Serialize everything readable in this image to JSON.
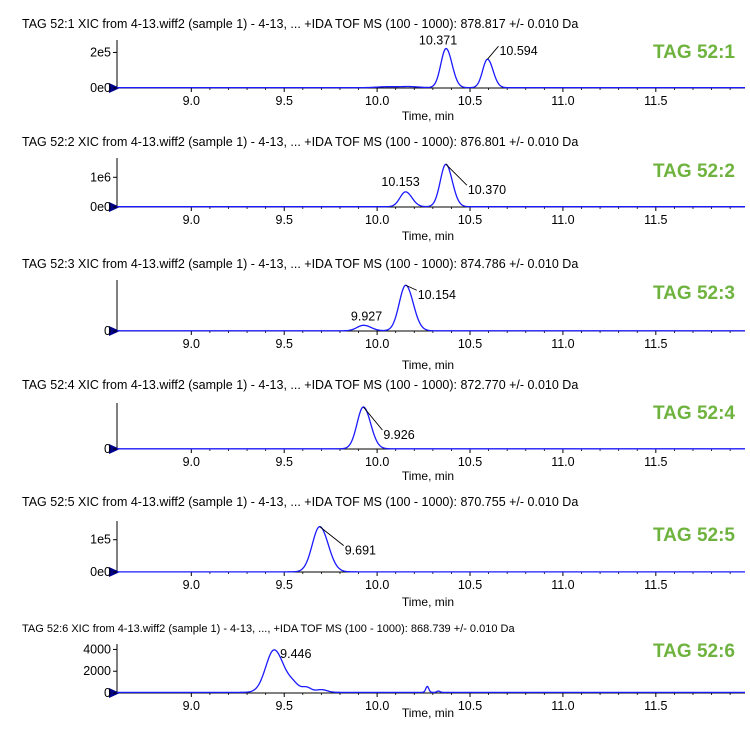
{
  "chart_data": [
    {
      "type": "line",
      "header": "TAG 52:1 XIC from 4-13.wiff2 (sample 1) - 4-13, ... +IDA TOF MS (100 - 1000): 878.817 +/- 0.010 Da",
      "tag_label": "TAG 52:1",
      "xlabel": "Time, min",
      "xlim": [
        8.6,
        11.98
      ],
      "xticks": [
        "9.0",
        "9.5",
        "10.0",
        "10.5",
        "11.0",
        "11.5"
      ],
      "yticks": [
        {
          "value": 0,
          "label": "0e0"
        },
        {
          "value": 200000,
          "label": "2e5"
        }
      ],
      "ylim": [
        0,
        270000
      ],
      "baseline": 2000,
      "noise": [
        {
          "x": 10.05,
          "amp": 5000,
          "w": 0.05
        },
        {
          "x": 10.17,
          "amp": 6000,
          "w": 0.05
        }
      ],
      "peaks": [
        {
          "x": 10.371,
          "height": 220000,
          "width": 0.028,
          "label": "10.371"
        },
        {
          "x": 10.594,
          "height": 160000,
          "width": 0.026,
          "label": "10.594"
        }
      ],
      "series": [
        {
          "color": "#1a1aff"
        }
      ]
    },
    {
      "type": "line",
      "header": "TAG 52:2 XIC from 4-13.wiff2 (sample 1) - 4-13, ... +IDA TOF MS (100 - 1000): 876.801 +/- 0.010 Da",
      "tag_label": "TAG 52:2",
      "xlabel": "Time, min",
      "xlim": [
        8.6,
        11.98
      ],
      "xticks": [
        "9.0",
        "9.5",
        "10.0",
        "10.5",
        "11.0",
        "11.5"
      ],
      "yticks": [
        {
          "value": 0,
          "label": "0e0"
        },
        {
          "value": 1000000,
          "label": "1e6"
        }
      ],
      "ylim": [
        0,
        1650000
      ],
      "baseline": 10000,
      "noise": [],
      "peaks": [
        {
          "x": 10.153,
          "height": 500000,
          "width": 0.03,
          "label": "10.153"
        },
        {
          "x": 10.37,
          "height": 1430000,
          "width": 0.03,
          "label": "10.370"
        }
      ],
      "series": [
        {
          "color": "#1a1aff"
        }
      ]
    },
    {
      "type": "line",
      "header": "TAG 52:3 XIC from 4-13.wiff2 (sample 1) - 4-13, ... +IDA TOF MS (100 - 1000): 874.786 +/- 0.010 Da",
      "tag_label": "TAG 52:3",
      "xlabel": "Time, min",
      "xlim": [
        8.6,
        11.98
      ],
      "xticks": [
        "9.0",
        "9.5",
        "10.0",
        "10.5",
        "11.0",
        "11.5"
      ],
      "yticks": [
        {
          "value": 0,
          "label": "0"
        }
      ],
      "ylim": [
        0,
        1.12
      ],
      "baseline": 0.005,
      "noise": [],
      "peaks": [
        {
          "x": 9.927,
          "height": 0.12,
          "width": 0.035,
          "label": "9.927"
        },
        {
          "x": 10.154,
          "height": 1.0,
          "width": 0.035,
          "label": "10.154"
        }
      ],
      "series": [
        {
          "color": "#1a1aff"
        }
      ]
    },
    {
      "type": "line",
      "header": "TAG 52:4 XIC from 4-13.wiff2 (sample 1) - 4-13, ... +IDA TOF MS (100 - 1000): 872.770 +/- 0.010 Da",
      "tag_label": "TAG 52:4",
      "xlabel": "Time, min",
      "xlim": [
        8.6,
        11.98
      ],
      "xticks": [
        "9.0",
        "9.5",
        "10.0",
        "10.5",
        "11.0",
        "11.5"
      ],
      "yticks": [
        {
          "value": 0,
          "label": "0"
        }
      ],
      "ylim": [
        0,
        1.1
      ],
      "baseline": 0.005,
      "noise": [],
      "peaks": [
        {
          "x": 9.926,
          "height": 1.0,
          "width": 0.034,
          "label": "9.926"
        }
      ],
      "series": [
        {
          "color": "#1a1aff"
        }
      ]
    },
    {
      "type": "line",
      "header": "TAG 52:5 XIC from 4-13.wiff2 (sample 1) - 4-13, ... +IDA TOF MS (100 - 1000): 870.755 +/- 0.010 Da",
      "tag_label": "TAG 52:5",
      "xlabel": "Time, min",
      "xlim": [
        8.6,
        11.98
      ],
      "xticks": [
        "9.0",
        "9.5",
        "10.0",
        "10.5",
        "11.0",
        "11.5"
      ],
      "yticks": [
        {
          "value": 0,
          "label": "0e0"
        },
        {
          "value": 100000,
          "label": "1e5"
        }
      ],
      "ylim": [
        0,
        158000
      ],
      "baseline": 500,
      "noise": [],
      "peaks": [
        {
          "x": 9.691,
          "height": 140000,
          "width": 0.04,
          "label": "9.691"
        }
      ],
      "series": [
        {
          "color": "#1a1aff"
        }
      ]
    },
    {
      "type": "line",
      "header": "TAG 52:6 XIC from 4-13.wiff2 (sample 1) - 4-13, ..., +IDA TOF MS (100 - 1000): 868.739 +/- 0.010 Da",
      "tag_label": "TAG 52:6",
      "xlabel": "Time, min",
      "xlim": [
        8.6,
        11.98
      ],
      "xticks": [
        "9.0",
        "9.5",
        "10.0",
        "10.5",
        "11.0",
        "11.5"
      ],
      "yticks": [
        {
          "value": 0,
          "label": "0"
        },
        {
          "value": 2000,
          "label": "2000"
        },
        {
          "value": 4000,
          "label": "4000"
        }
      ],
      "ylim": [
        0,
        4500
      ],
      "baseline": 60,
      "noise": [
        {
          "x": 9.55,
          "amp": 600,
          "w": 0.03
        },
        {
          "x": 9.62,
          "amp": 450,
          "w": 0.025
        },
        {
          "x": 9.7,
          "amp": 250,
          "w": 0.03
        },
        {
          "x": 10.27,
          "amp": 550,
          "w": 0.008
        },
        {
          "x": 10.33,
          "amp": 120,
          "w": 0.008
        }
      ],
      "peaks": [
        {
          "x": 9.446,
          "height": 3900,
          "width": 0.045,
          "label": "9.446"
        }
      ],
      "series": [
        {
          "color": "#1a1aff"
        }
      ]
    }
  ]
}
